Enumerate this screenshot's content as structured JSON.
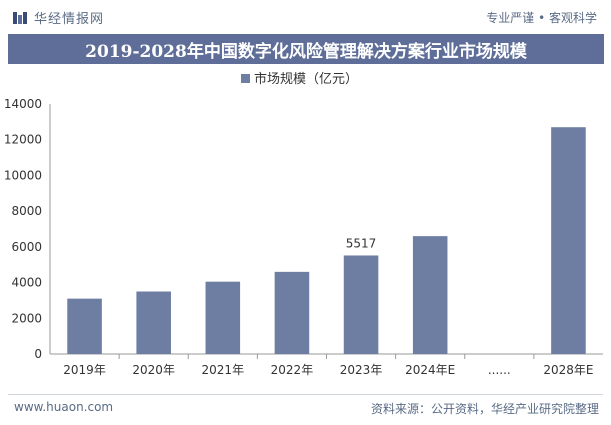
{
  "header": {
    "brand": "华经情报网",
    "slogan": "专业严谨 • 客观科学"
  },
  "title": "2019-2028年中国数字化风险管理解决方案行业市场规模",
  "chart_data": {
    "type": "bar",
    "legend": "市场规模（亿元）",
    "legend_position": "top-center",
    "categories": [
      "2019年",
      "2020年",
      "2021年",
      "2022年",
      "2023年",
      "2024年E",
      "......",
      "2028年E"
    ],
    "values": [
      3100,
      3500,
      4050,
      4600,
      5517,
      6600,
      null,
      12700
    ],
    "data_labels": [
      {
        "category": "2023年",
        "text": "5517"
      }
    ],
    "ylim": [
      0,
      14000
    ],
    "yticks": [
      0,
      2000,
      4000,
      6000,
      8000,
      10000,
      12000,
      14000
    ],
    "bar_color": "#6e7ea3",
    "grid": false
  },
  "footer": {
    "site": "www.huaon.com",
    "source": "资料来源：公开资料，华经产业研究院整理"
  },
  "colors": {
    "band": "#5f6e99",
    "bar": "#6e7ea3",
    "text_muted": "#5a6b86"
  }
}
